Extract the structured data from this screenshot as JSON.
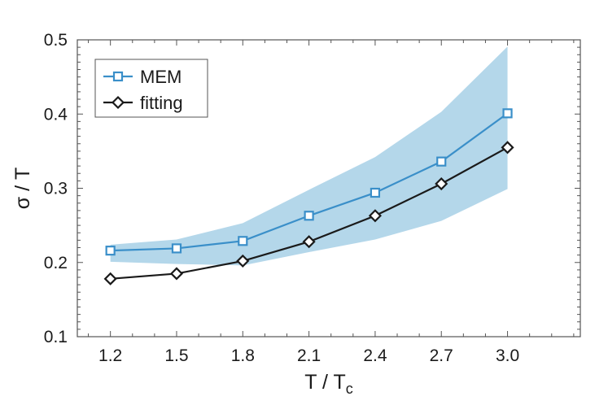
{
  "chart_data": {
    "type": "line",
    "x": [
      1.2,
      1.5,
      1.8,
      2.1,
      2.4,
      2.7,
      3.0
    ],
    "x_tick_labels": [
      "1.2",
      "1.5",
      "1.8",
      "2.1",
      "2.4",
      "2.7",
      "3.0"
    ],
    "y_tick_labels": [
      "0.1",
      "0.2",
      "0.3",
      "0.4",
      "0.5"
    ],
    "y_ticks": [
      0.1,
      0.2,
      0.3,
      0.4,
      0.5
    ],
    "xlim": [
      1.05,
      3.33
    ],
    "ylim": [
      0.1,
      0.5
    ],
    "xlabel": {
      "main": "T / T",
      "sub": "c"
    },
    "ylabel": "σ / T",
    "legend_position": "top-left",
    "grid": false,
    "series": [
      {
        "name": "MEM",
        "marker": "square",
        "color": "#3a8fc9",
        "values": [
          0.216,
          0.219,
          0.229,
          0.263,
          0.294,
          0.336,
          0.401
        ]
      },
      {
        "name": "fitting",
        "marker": "diamond",
        "color": "#1a1a1a",
        "values": [
          0.178,
          0.185,
          0.202,
          0.228,
          0.263,
          0.306,
          0.355
        ]
      }
    ],
    "band": {
      "color": "#b4d7ea",
      "upper": [
        0.224,
        0.231,
        0.253,
        0.298,
        0.342,
        0.403,
        0.491
      ],
      "lower": [
        0.201,
        0.198,
        0.196,
        0.214,
        0.231,
        0.256,
        0.299
      ]
    }
  }
}
